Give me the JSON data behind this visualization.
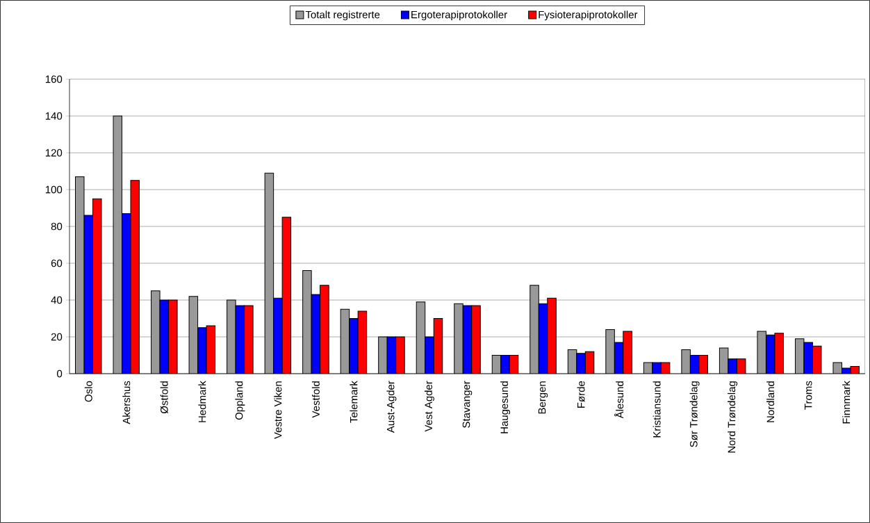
{
  "chart_data": {
    "type": "bar",
    "categories": [
      "Oslo",
      "Akershus",
      "Østfold",
      "Hedmark",
      "Oppland",
      "Vestre Viken",
      "Vestfold",
      "Telemark",
      "Aust-Agder",
      "Vest Agder",
      "Stavanger",
      "Haugesund",
      "Bergen",
      "Førde",
      "Ålesund",
      "Kristiansund",
      "Sør Trøndelag",
      "Nord Trøndelag",
      "Nordland",
      "Troms",
      "Finnmark"
    ],
    "series": [
      {
        "name": "Totalt registrerte",
        "color": "#999999",
        "values": [
          107,
          140,
          45,
          42,
          40,
          109,
          56,
          35,
          20,
          39,
          38,
          10,
          48,
          13,
          24,
          6,
          13,
          14,
          23,
          19,
          6
        ]
      },
      {
        "name": "Ergoterapiprotokoller",
        "color": "#0000ff",
        "values": [
          86,
          87,
          40,
          25,
          37,
          41,
          43,
          30,
          20,
          20,
          37,
          10,
          38,
          11,
          17,
          6,
          10,
          8,
          21,
          17,
          3
        ]
      },
      {
        "name": "Fysioterapiprotokoller",
        "color": "#ff0000",
        "values": [
          95,
          105,
          40,
          26,
          37,
          85,
          48,
          34,
          20,
          30,
          37,
          10,
          41,
          12,
          23,
          6,
          10,
          8,
          22,
          15,
          4
        ]
      }
    ],
    "ylim": [
      0,
      160
    ],
    "yticks": [
      0,
      20,
      40,
      60,
      80,
      100,
      120,
      140,
      160
    ],
    "grid": "y",
    "legend": "top"
  }
}
